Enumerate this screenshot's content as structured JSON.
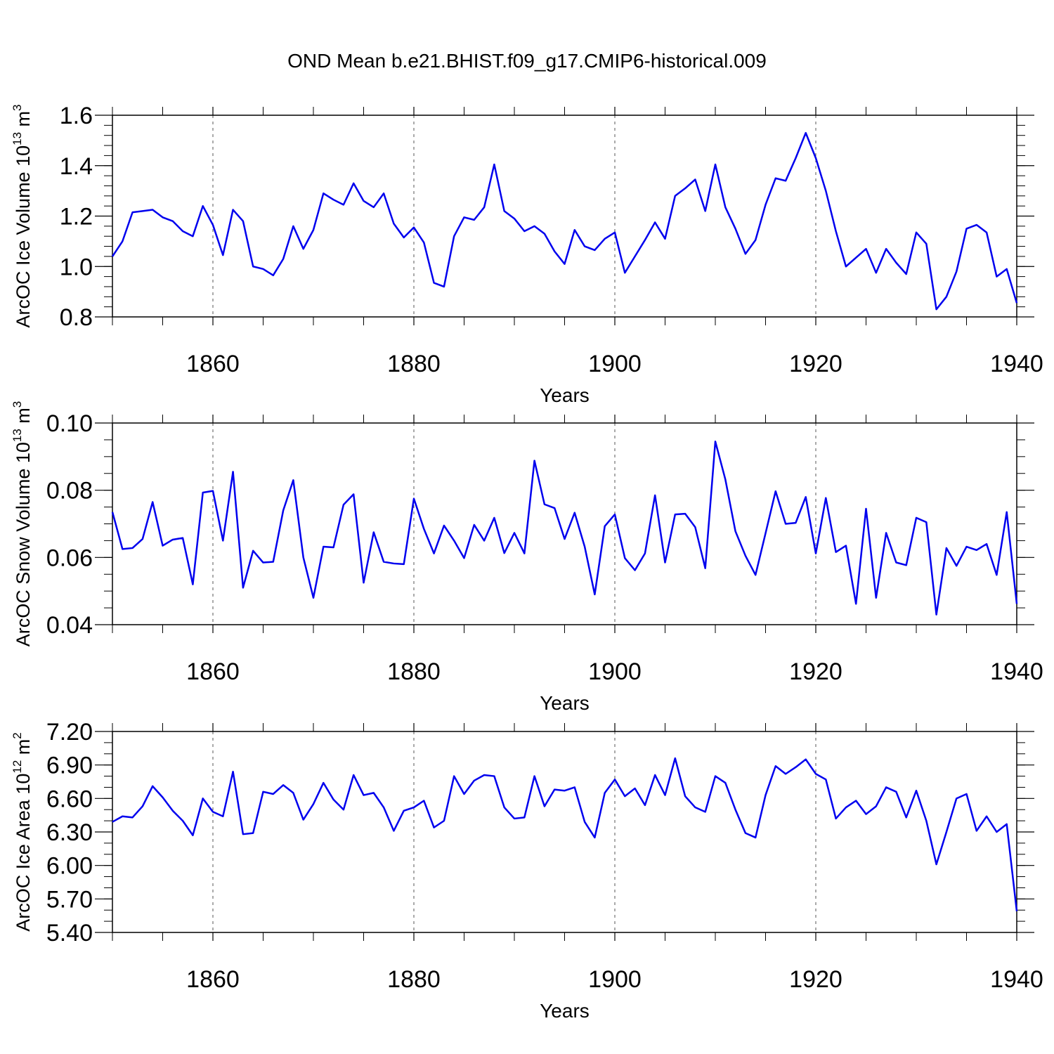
{
  "chart_data": {
    "title": "OND Mean b.e21.BHIST.f09_g17.CMIP6-historical.009",
    "x_start_year": 1850,
    "xlim": [
      1850,
      1940
    ],
    "major_xticks": [
      1860,
      1880,
      1900,
      1920,
      1940
    ],
    "minor_xticks": [
      1850,
      1855,
      1865,
      1870,
      1875,
      1885,
      1890,
      1895,
      1905,
      1910,
      1915,
      1925,
      1930,
      1935
    ],
    "line_color": "#0000ee",
    "panels": [
      {
        "type": "line",
        "xlabel": "Years",
        "ylabel": "ArcOC Ice Volume 10",
        "ylabel_exponent": "13",
        "ylabel_unit": "m",
        "ylabel_unit_exponent": "3",
        "ylim": [
          0.8,
          1.6
        ],
        "yticks": [
          "0.8",
          "1.0",
          "1.2",
          "1.4",
          "1.6"
        ],
        "minor_ystep": 0.04,
        "values": [
          1.04,
          1.1,
          1.215,
          1.22,
          1.225,
          1.195,
          1.18,
          1.14,
          1.12,
          1.24,
          1.165,
          1.045,
          1.225,
          1.18,
          1.0,
          0.99,
          0.965,
          1.03,
          1.16,
          1.07,
          1.145,
          1.29,
          1.265,
          1.245,
          1.33,
          1.26,
          1.235,
          1.29,
          1.17,
          1.115,
          1.155,
          1.095,
          0.935,
          0.92,
          1.12,
          1.195,
          1.185,
          1.235,
          1.405,
          1.22,
          1.19,
          1.14,
          1.16,
          1.13,
          1.06,
          1.01,
          1.145,
          1.08,
          1.065,
          1.11,
          1.135,
          0.975,
          1.04,
          1.105,
          1.175,
          1.11,
          1.28,
          1.31,
          1.345,
          1.22,
          1.405,
          1.235,
          1.15,
          1.05,
          1.105,
          1.245,
          1.35,
          1.34,
          1.43,
          1.53,
          1.43,
          1.3,
          1.14,
          1.0,
          1.035,
          1.07,
          0.975,
          1.07,
          1.015,
          0.97,
          1.135,
          1.09,
          0.83,
          0.88,
          0.98,
          1.15,
          1.165,
          1.135,
          0.96,
          0.99,
          0.855
        ]
      },
      {
        "type": "line",
        "xlabel": "Years",
        "ylabel": "ArcOC Snow Volume 10",
        "ylabel_exponent": "13",
        "ylabel_unit": "m",
        "ylabel_unit_exponent": "3",
        "ylim": [
          0.04,
          0.1
        ],
        "yticks": [
          "0.04",
          "0.06",
          "0.08",
          "0.10"
        ],
        "minor_ystep": 0.005,
        "values": [
          0.0735,
          0.0625,
          0.0628,
          0.0655,
          0.0765,
          0.0635,
          0.0653,
          0.0658,
          0.052,
          0.0793,
          0.0798,
          0.065,
          0.0855,
          0.051,
          0.062,
          0.0585,
          0.0587,
          0.074,
          0.083,
          0.06,
          0.048,
          0.0632,
          0.063,
          0.0757,
          0.0788,
          0.0525,
          0.0675,
          0.0587,
          0.0582,
          0.058,
          0.0775,
          0.0685,
          0.0612,
          0.0695,
          0.065,
          0.0598,
          0.0697,
          0.065,
          0.0718,
          0.0613,
          0.0673,
          0.0612,
          0.0888,
          0.0758,
          0.0747,
          0.0655,
          0.0733,
          0.0632,
          0.049,
          0.0693,
          0.0728,
          0.0598,
          0.0562,
          0.0612,
          0.0785,
          0.0585,
          0.0728,
          0.073,
          0.069,
          0.0568,
          0.0945,
          0.0832,
          0.0678,
          0.0605,
          0.0548,
          0.0672,
          0.0797,
          0.07,
          0.0703,
          0.078,
          0.0612,
          0.0777,
          0.0616,
          0.0635,
          0.0462,
          0.0745,
          0.048,
          0.0673,
          0.0585,
          0.0577,
          0.0718,
          0.0705,
          0.043,
          0.0628,
          0.0575,
          0.0632,
          0.0622,
          0.064,
          0.0548,
          0.0735,
          0.0462
        ]
      },
      {
        "type": "line",
        "xlabel": "Years",
        "ylabel": "ArcOC Ice Area 10",
        "ylabel_exponent": "12",
        "ylabel_unit": "m",
        "ylabel_unit_exponent": "2",
        "ylim": [
          5.4,
          7.2
        ],
        "yticks": [
          "5.40",
          "5.70",
          "6.00",
          "6.30",
          "6.60",
          "6.90",
          "7.20"
        ],
        "minor_ystep": 0.1,
        "values": [
          6.39,
          6.44,
          6.43,
          6.53,
          6.71,
          6.61,
          6.49,
          6.4,
          6.27,
          6.6,
          6.48,
          6.44,
          6.84,
          6.28,
          6.29,
          6.66,
          6.64,
          6.72,
          6.65,
          6.41,
          6.55,
          6.74,
          6.59,
          6.5,
          6.81,
          6.63,
          6.65,
          6.52,
          6.31,
          6.49,
          6.52,
          6.58,
          6.34,
          6.4,
          6.8,
          6.64,
          6.76,
          6.81,
          6.8,
          6.52,
          6.42,
          6.43,
          6.8,
          6.53,
          6.68,
          6.67,
          6.7,
          6.39,
          6.25,
          6.65,
          6.77,
          6.62,
          6.69,
          6.54,
          6.81,
          6.63,
          6.96,
          6.62,
          6.52,
          6.48,
          6.8,
          6.74,
          6.5,
          6.29,
          6.25,
          6.63,
          6.89,
          6.82,
          6.88,
          6.95,
          6.82,
          6.77,
          6.42,
          6.52,
          6.58,
          6.46,
          6.53,
          6.7,
          6.66,
          6.43,
          6.67,
          6.4,
          6.01,
          6.3,
          6.6,
          6.64,
          6.31,
          6.44,
          6.3,
          6.37,
          5.59
        ]
      }
    ]
  }
}
